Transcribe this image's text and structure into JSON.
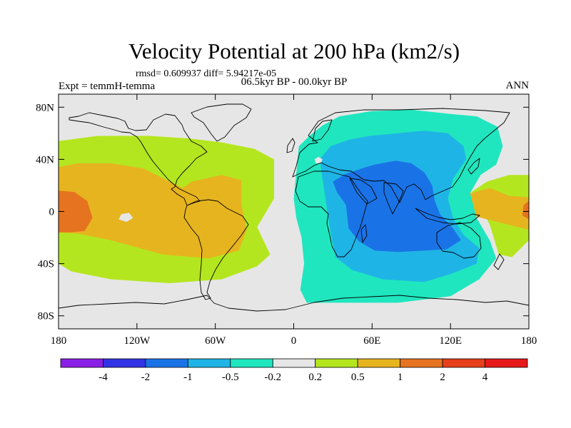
{
  "chart_data": {
    "type": "contour-map",
    "title": "Velocity Potential at 200 hPa (km2/s)",
    "stats_line": "rmsd= 0.609937 diff= 5.94217e-05",
    "period_label": "06.5kyr BP - 00.0kyr BP",
    "left_label": "Expt = temmH-temma",
    "right_label": "ANN",
    "x_axis": {
      "range": [
        -180,
        180
      ],
      "ticks": [
        {
          "value": -180,
          "label": "180"
        },
        {
          "value": -120,
          "label": "120W"
        },
        {
          "value": -60,
          "label": "60W"
        },
        {
          "value": 0,
          "label": "0"
        },
        {
          "value": 60,
          "label": "60E"
        },
        {
          "value": 120,
          "label": "120E"
        },
        {
          "value": 180,
          "label": "180"
        }
      ]
    },
    "y_axis": {
      "range": [
        -90,
        90
      ],
      "ticks": [
        {
          "value": 80,
          "label": "80N"
        },
        {
          "value": 40,
          "label": "40N"
        },
        {
          "value": 0,
          "label": "0"
        },
        {
          "value": -40,
          "label": "40S"
        },
        {
          "value": -80,
          "label": "80S"
        }
      ]
    },
    "colorbar": {
      "colors": [
        "#8a1fe6",
        "#3333e6",
        "#1a73e6",
        "#1fb4e6",
        "#1fe6bf",
        "#e6e6e6",
        "#b4e61f",
        "#e6b41f",
        "#e6731f",
        "#e6401a",
        "#e61a1a"
      ],
      "labels": [
        "-4",
        "-2",
        "-1",
        "-0.5",
        "-0.2",
        "0.2",
        "0.5",
        "1",
        "2",
        "4"
      ]
    },
    "regions": [
      {
        "level": "0.2 to 0.5",
        "color": "#b4e61f",
        "points": [
          [
            -180,
            54
          ],
          [
            -150,
            58
          ],
          [
            -110,
            58
          ],
          [
            -80,
            56
          ],
          [
            -55,
            53
          ],
          [
            -30,
            48
          ],
          [
            -15,
            40
          ],
          [
            -15,
            10
          ],
          [
            -28,
            -12
          ],
          [
            -18,
            -33
          ],
          [
            -28,
            -42
          ],
          [
            -55,
            -52
          ],
          [
            -95,
            -55
          ],
          [
            -140,
            -52
          ],
          [
            -170,
            -46
          ],
          [
            -180,
            -40
          ]
        ]
      },
      {
        "level": "0.5 to 1",
        "color": "#e6b41f",
        "points": [
          [
            -180,
            34
          ],
          [
            -165,
            37
          ],
          [
            -140,
            37
          ],
          [
            -115,
            33
          ],
          [
            -95,
            23
          ],
          [
            -85,
            18
          ],
          [
            -78,
            23
          ],
          [
            -55,
            28
          ],
          [
            -40,
            24
          ],
          [
            -40,
            5
          ],
          [
            -36,
            -14
          ],
          [
            -42,
            -30
          ],
          [
            -65,
            -36
          ],
          [
            -100,
            -33
          ],
          [
            -140,
            -22
          ],
          [
            -165,
            -17
          ],
          [
            -180,
            -16
          ]
        ]
      },
      {
        "level": "1 to 2",
        "color": "#e6731f",
        "points": [
          [
            -180,
            16
          ],
          [
            -168,
            15
          ],
          [
            -158,
            8
          ],
          [
            -154,
            -5
          ],
          [
            -160,
            -15
          ],
          [
            -172,
            -16
          ],
          [
            -180,
            -16
          ]
        ]
      },
      {
        "level": "0.2 to 0.5",
        "color": "#e6e6e6",
        "points": [
          [
            -132,
            -2
          ],
          [
            -126,
            -1
          ],
          [
            -123,
            -5
          ],
          [
            -128,
            -8
          ],
          [
            -134,
            -6
          ]
        ]
      },
      {
        "level": "0.2 to 0.5",
        "color": "#b4e61f",
        "points": [
          [
            180,
            -22
          ],
          [
            167,
            -35
          ],
          [
            157,
            -33
          ],
          [
            150,
            -10
          ],
          [
            138,
            12
          ],
          [
            136,
            15
          ],
          [
            148,
            23
          ],
          [
            165,
            28
          ],
          [
            180,
            28
          ]
        ]
      },
      {
        "level": "0.5 to 1",
        "color": "#e6b41f",
        "points": [
          [
            180,
            11
          ],
          [
            165,
            12
          ],
          [
            150,
            18
          ],
          [
            135,
            14
          ],
          [
            128,
            5
          ],
          [
            140,
            -4
          ],
          [
            160,
            -9
          ],
          [
            180,
            -14
          ]
        ]
      },
      {
        "level": "1 to 2",
        "color": "#e6731f",
        "points": [
          [
            180,
            8
          ],
          [
            176,
            5
          ],
          [
            175,
            -3
          ],
          [
            180,
            -6
          ]
        ]
      },
      {
        "level": "-0.5 to -0.2",
        "color": "#1fe6bf",
        "points": [
          [
            4,
            50
          ],
          [
            12,
            58
          ],
          [
            22,
            66
          ],
          [
            35,
            73
          ],
          [
            60,
            77
          ],
          [
            90,
            78
          ],
          [
            118,
            75
          ],
          [
            140,
            73
          ],
          [
            156,
            65
          ],
          [
            160,
            50
          ],
          [
            155,
            36
          ],
          [
            143,
            28
          ],
          [
            135,
            14
          ],
          [
            140,
            -5
          ],
          [
            150,
            -22
          ],
          [
            155,
            -36
          ],
          [
            142,
            -52
          ],
          [
            120,
            -65
          ],
          [
            80,
            -70
          ],
          [
            40,
            -70
          ],
          [
            10,
            -70
          ],
          [
            5,
            -60
          ],
          [
            8,
            -40
          ],
          [
            6,
            -20
          ],
          [
            2,
            -5
          ],
          [
            0,
            10
          ],
          [
            2,
            30
          ]
        ]
      },
      {
        "level": "-1 to -0.5",
        "color": "#1fb4e6",
        "points": [
          [
            20,
            40
          ],
          [
            28,
            50
          ],
          [
            42,
            55
          ],
          [
            58,
            58
          ],
          [
            80,
            60
          ],
          [
            100,
            62
          ],
          [
            118,
            60
          ],
          [
            130,
            50
          ],
          [
            132,
            40
          ],
          [
            122,
            25
          ],
          [
            118,
            10
          ],
          [
            122,
            -5
          ],
          [
            130,
            -18
          ],
          [
            142,
            -28
          ],
          [
            140,
            -40
          ],
          [
            120,
            -48
          ],
          [
            100,
            -54
          ],
          [
            68,
            -52
          ],
          [
            45,
            -45
          ],
          [
            32,
            -35
          ],
          [
            28,
            -15
          ],
          [
            25,
            5
          ],
          [
            22,
            25
          ]
        ]
      },
      {
        "level": "-2 to -1",
        "color": "#1a73e6",
        "points": [
          [
            30,
            23
          ],
          [
            40,
            29
          ],
          [
            52,
            33
          ],
          [
            62,
            36
          ],
          [
            78,
            39
          ],
          [
            90,
            37
          ],
          [
            100,
            30
          ],
          [
            106,
            20
          ],
          [
            108,
            8
          ],
          [
            112,
            -2
          ],
          [
            122,
            -13
          ],
          [
            128,
            -22
          ],
          [
            117,
            -29
          ],
          [
            100,
            -30
          ],
          [
            80,
            -31
          ],
          [
            62,
            -30
          ],
          [
            50,
            -23
          ],
          [
            42,
            -13
          ],
          [
            40,
            5
          ],
          [
            33,
            15
          ]
        ]
      },
      {
        "level": "-0.5 to -0.2",
        "color": "#e6e6e6",
        "points": [
          [
            16,
            40
          ],
          [
            19,
            42
          ],
          [
            22,
            40
          ],
          [
            21,
            37
          ],
          [
            17,
            37
          ]
        ]
      }
    ]
  }
}
